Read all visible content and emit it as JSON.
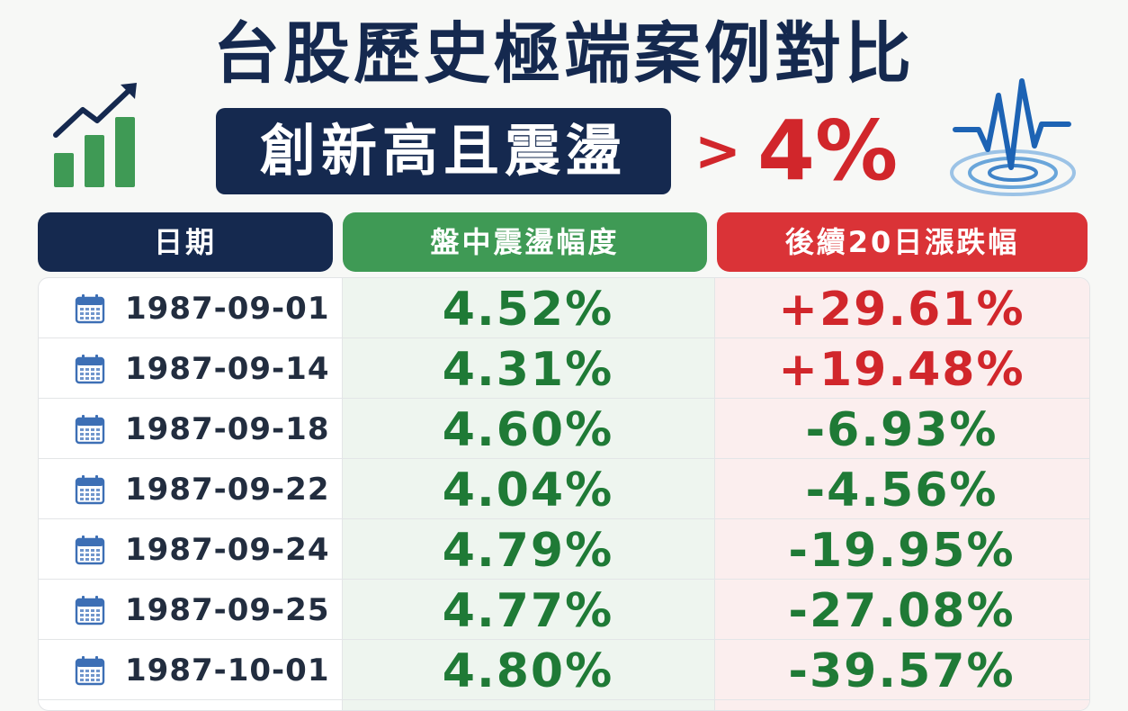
{
  "title": "台股歷史極端案例對比",
  "subtitle": "創新高且震盪",
  "threshold": {
    "symbol": ">",
    "value": "4%"
  },
  "headers": {
    "date": "日期",
    "amplitude": "盤中震盪幅度",
    "return20d": "後續20日漲跌幅"
  },
  "icons": {
    "left": "bar-chart-up-icon",
    "right": "pulse-wave-icon",
    "row": "calendar-icon"
  },
  "colors": {
    "navy": "#15294f",
    "green": "#1f7a36",
    "red": "#d1262b"
  },
  "rows": [
    {
      "date": "1987-09-01",
      "amplitude": "4.52%",
      "return": "+29.61%",
      "positive": true
    },
    {
      "date": "1987-09-14",
      "amplitude": "4.31%",
      "return": "+19.48%",
      "positive": true
    },
    {
      "date": "1987-09-18",
      "amplitude": "4.60%",
      "return": "-6.93%",
      "positive": false
    },
    {
      "date": "1987-09-22",
      "amplitude": "4.04%",
      "return": "-4.56%",
      "positive": false
    },
    {
      "date": "1987-09-24",
      "amplitude": "4.79%",
      "return": "-19.95%",
      "positive": false
    },
    {
      "date": "1987-09-25",
      "amplitude": "4.77%",
      "return": "-27.08%",
      "positive": false
    },
    {
      "date": "1987-10-01",
      "amplitude": "4.80%",
      "return": "-39.57%",
      "positive": false
    }
  ]
}
